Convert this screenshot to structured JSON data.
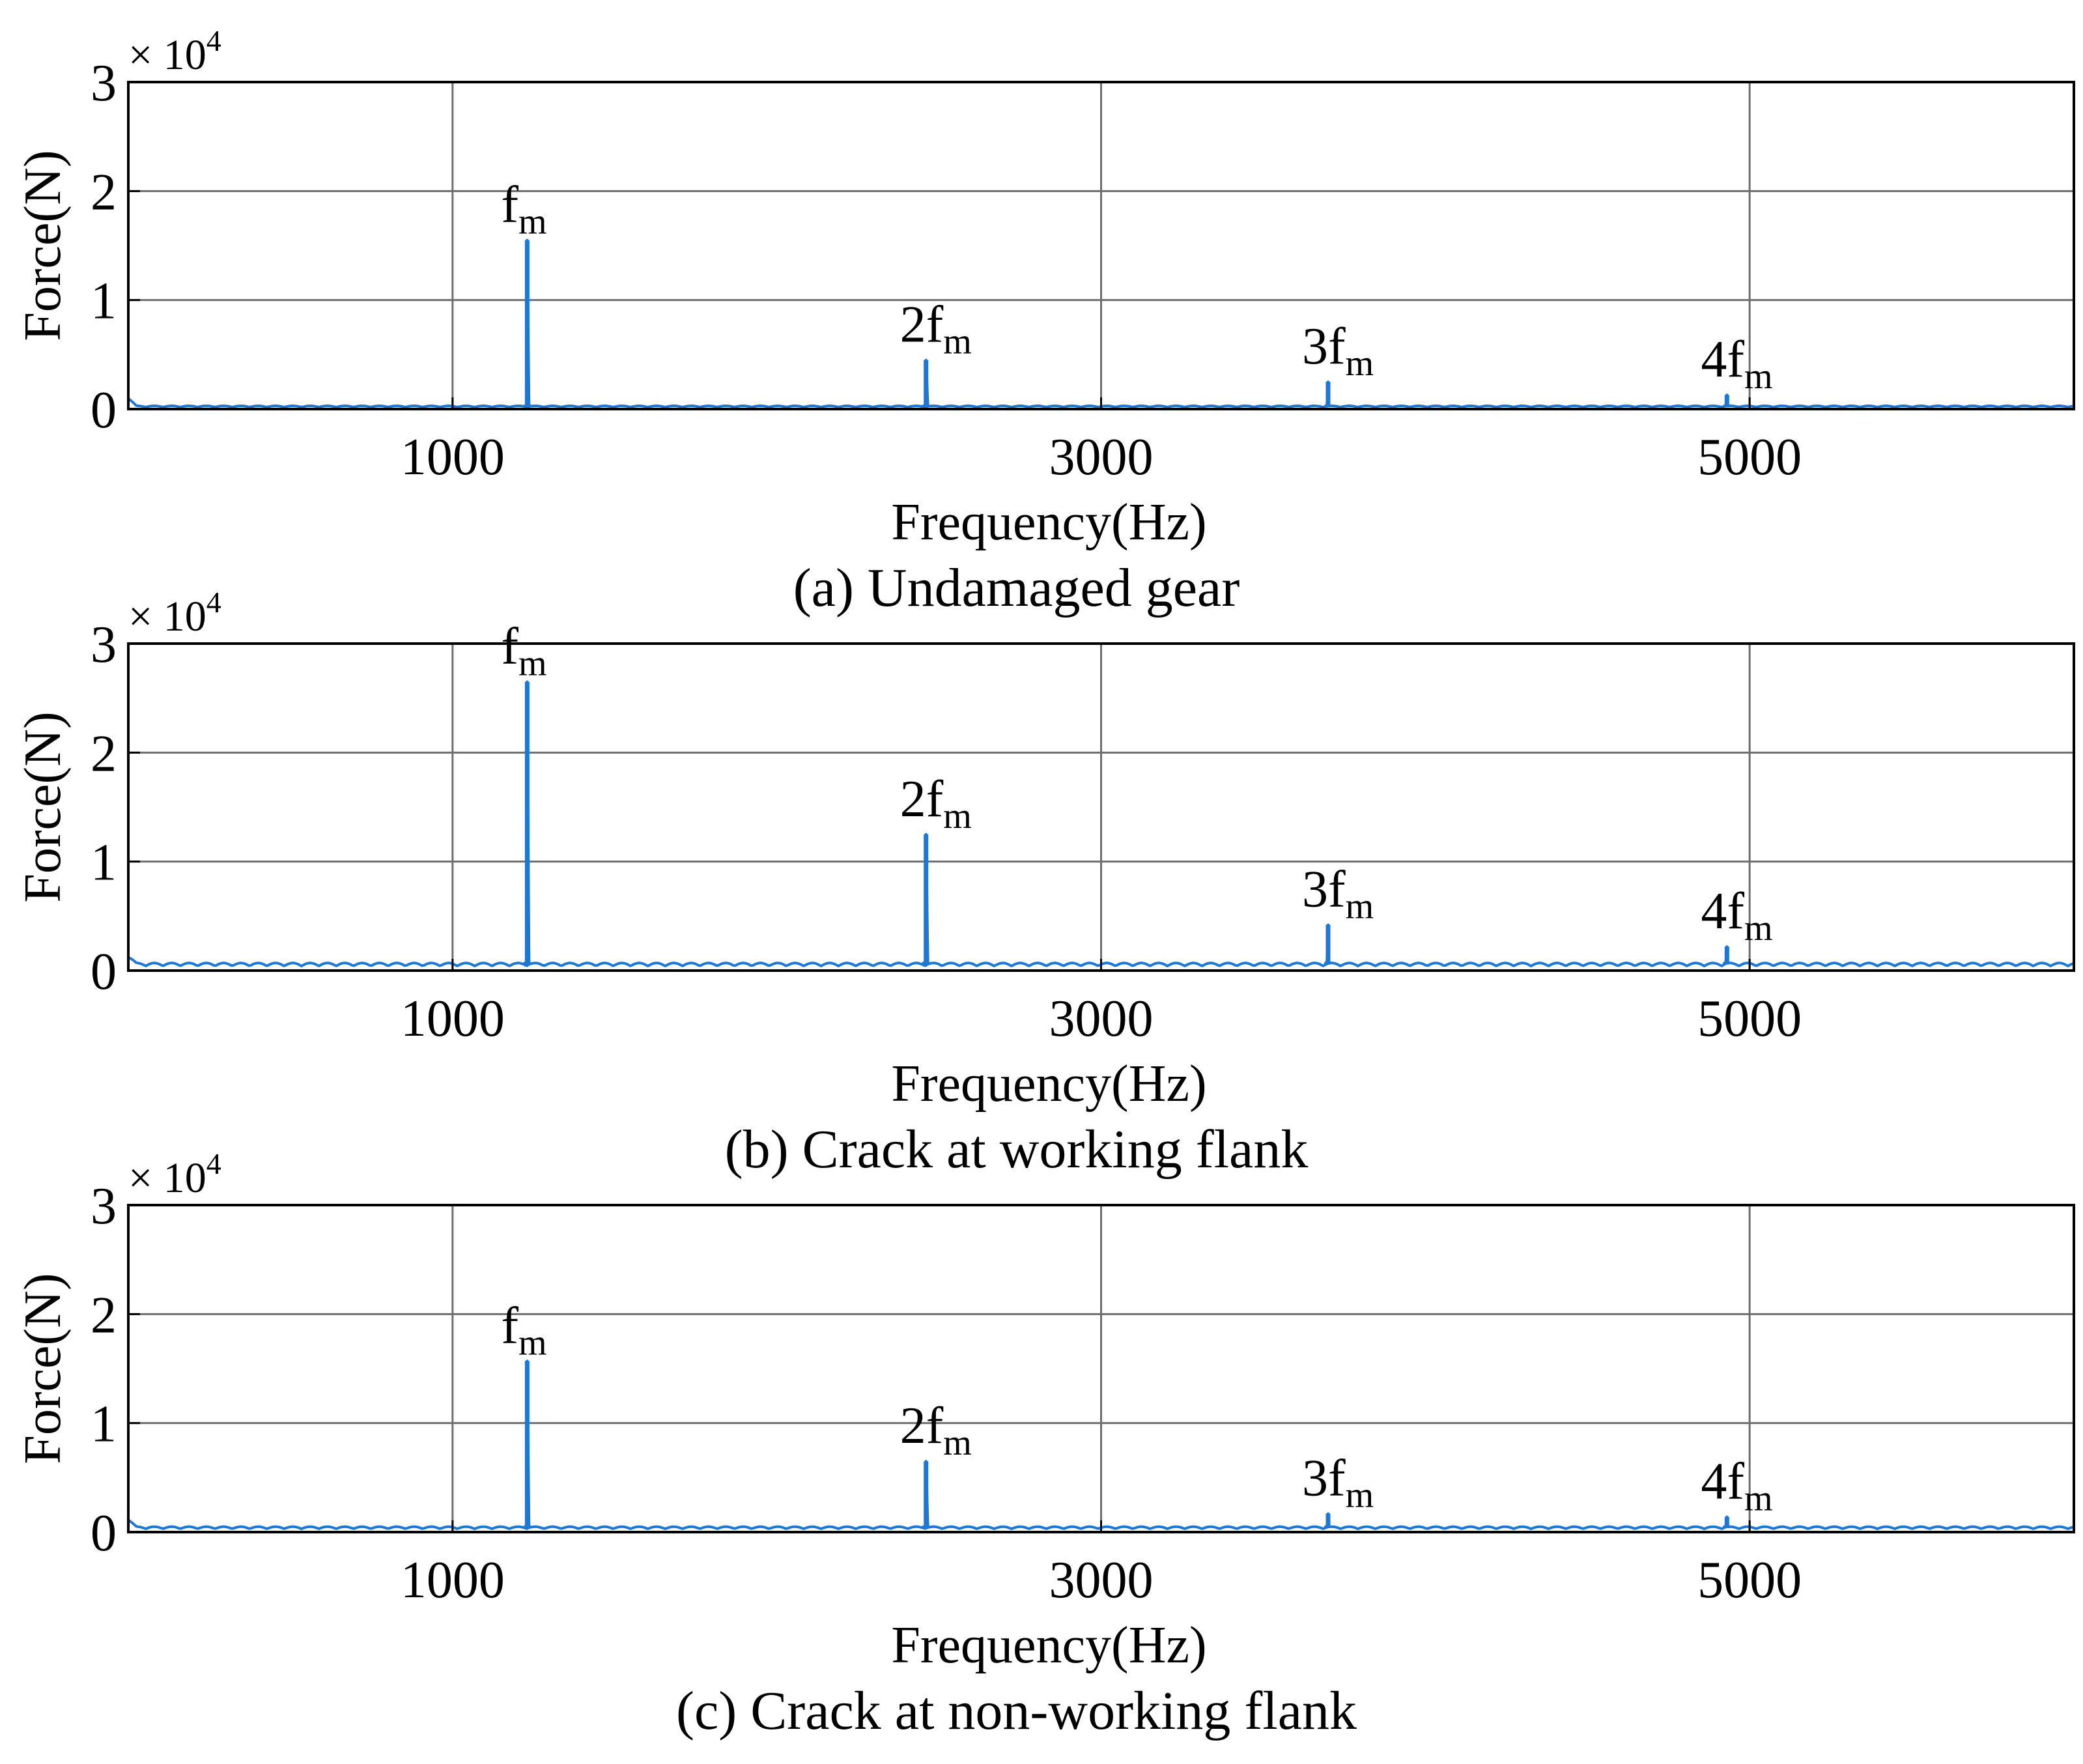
{
  "chart_data": [
    {
      "type": "line",
      "caption": "(a) Undamaged gear",
      "xlabel": "Frequency(Hz)",
      "ylabel": "Force(N)",
      "y_multiplier": "× 10",
      "y_multiplier_exponent": "4",
      "xlim": [
        0,
        6000
      ],
      "ylim": [
        0,
        3
      ],
      "xticks": [
        1000,
        3000,
        5000
      ],
      "xtick_labels": [
        "1000",
        "3000",
        "5000"
      ],
      "yticks": [
        0,
        1,
        2,
        3
      ],
      "ytick_labels": [
        "0",
        "1",
        "2",
        "3"
      ],
      "grid": true,
      "series_color": "#1f77d4",
      "baseline": 0.03,
      "peaks": [
        {
          "x": 1230,
          "y": 1.55,
          "label": "f",
          "sub": "m"
        },
        {
          "x": 2460,
          "y": 0.45,
          "label": "2f",
          "sub": "m"
        },
        {
          "x": 3700,
          "y": 0.25,
          "label": "3f",
          "sub": "m"
        },
        {
          "x": 4930,
          "y": 0.13,
          "label": "4f",
          "sub": "m"
        }
      ]
    },
    {
      "type": "line",
      "caption": "(b) Crack at working flank",
      "xlabel": "Frequency(Hz)",
      "ylabel": "Force(N)",
      "y_multiplier": "× 10",
      "y_multiplier_exponent": "4",
      "xlim": [
        0,
        6000
      ],
      "ylim": [
        0,
        3
      ],
      "xticks": [
        1000,
        3000,
        5000
      ],
      "xtick_labels": [
        "1000",
        "3000",
        "5000"
      ],
      "yticks": [
        0,
        1,
        2,
        3
      ],
      "ytick_labels": [
        "0",
        "1",
        "2",
        "3"
      ],
      "grid": true,
      "series_color": "#1f77d4",
      "baseline": 0.07,
      "peaks": [
        {
          "x": 1230,
          "y": 2.65,
          "label": "f",
          "sub": "m"
        },
        {
          "x": 2460,
          "y": 1.25,
          "label": "2f",
          "sub": "m"
        },
        {
          "x": 3700,
          "y": 0.42,
          "label": "3f",
          "sub": "m"
        },
        {
          "x": 4930,
          "y": 0.22,
          "label": "4f",
          "sub": "m"
        }
      ]
    },
    {
      "type": "line",
      "caption": "(c) Crack at non-working flank",
      "xlabel": "Frequency(Hz)",
      "ylabel": "Force(N)",
      "y_multiplier": "× 10",
      "y_multiplier_exponent": "4",
      "xlim": [
        0,
        6000
      ],
      "ylim": [
        0,
        3
      ],
      "xticks": [
        1000,
        3000,
        5000
      ],
      "xtick_labels": [
        "1000",
        "3000",
        "5000"
      ],
      "yticks": [
        0,
        1,
        2,
        3
      ],
      "ytick_labels": [
        "0",
        "1",
        "2",
        "3"
      ],
      "grid": true,
      "series_color": "#1f77d4",
      "baseline": 0.05,
      "peaks": [
        {
          "x": 1230,
          "y": 1.57,
          "label": "f",
          "sub": "m"
        },
        {
          "x": 2460,
          "y": 0.65,
          "label": "2f",
          "sub": "m"
        },
        {
          "x": 3700,
          "y": 0.17,
          "label": "3f",
          "sub": "m"
        },
        {
          "x": 4930,
          "y": 0.14,
          "label": "4f",
          "sub": "m"
        }
      ]
    }
  ]
}
